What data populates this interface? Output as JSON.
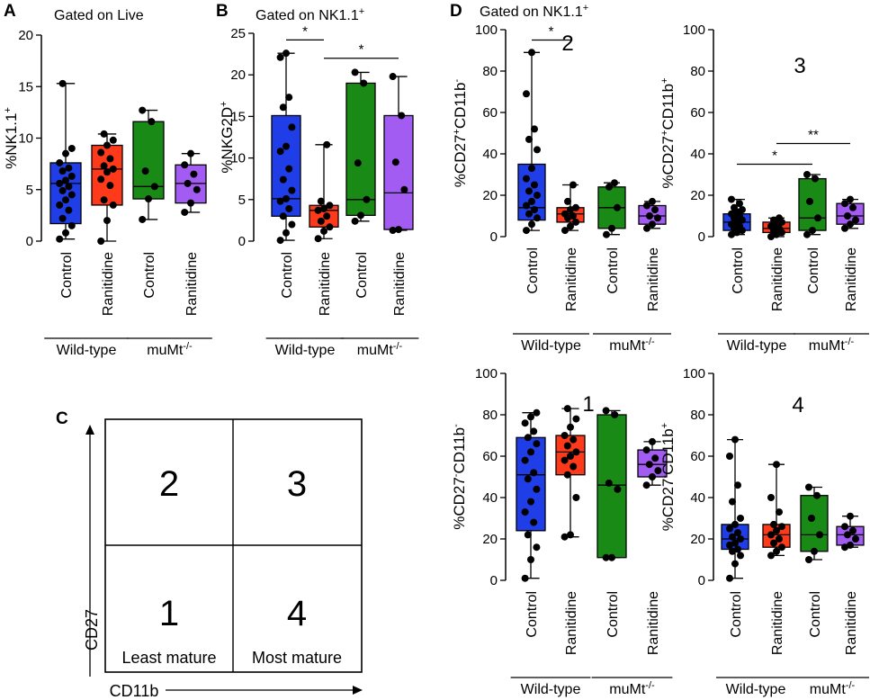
{
  "colors": {
    "control_wt": "#1f3ee8",
    "ranitidine_wt": "#ff3a1a",
    "control_mumt": "#1a8a16",
    "ranitidine_mumt": "#a35cf2",
    "dot": "#000000"
  },
  "categories": [
    "Control",
    "Ranitidine",
    "Control",
    "Ranitidine"
  ],
  "groups": [
    "Wild-type",
    "muMt-/-"
  ],
  "chart_data": [
    {
      "id": "A",
      "panel_letter": "A",
      "type": "box",
      "title": "Gated on Live",
      "ylabel": "%NK1.1+",
      "ylim": [
        0,
        20
      ],
      "yticks": [
        "0",
        "5",
        "10",
        "15",
        "20"
      ],
      "quadrant_number": "",
      "categories": [
        "Control",
        "Ranitidine",
        "Control",
        "Ranitidine"
      ],
      "groups": [
        "Wild-type",
        "muMt-/-"
      ],
      "boxes": [
        {
          "min": 0.2,
          "q1": 1.7,
          "median": 5.6,
          "q3": 7.6,
          "max": 15.3,
          "points": [
            0.2,
            0.8,
            1.5,
            2.2,
            3.0,
            3.5,
            4.0,
            4.5,
            4.9,
            5.3,
            5.6,
            5.9,
            6.3,
            6.8,
            7.1,
            7.6,
            8.5,
            9.0,
            15.3
          ]
        },
        {
          "min": 0.0,
          "q1": 3.5,
          "median": 7.0,
          "q3": 9.3,
          "max": 10.4,
          "points": [
            0.0,
            2.0,
            3.5,
            4.0,
            5.4,
            6.0,
            6.7,
            7.0,
            7.3,
            8.0,
            8.6,
            9.3,
            9.8,
            10.4
          ]
        },
        {
          "min": 2.1,
          "q1": 4.1,
          "median": 5.3,
          "q3": 11.6,
          "max": 12.7,
          "points": [
            2.1,
            4.1,
            5.3,
            6.8,
            11.6,
            12.7
          ]
        },
        {
          "min": 2.8,
          "q1": 3.7,
          "median": 5.6,
          "q3": 7.4,
          "max": 8.5,
          "points": [
            2.8,
            3.7,
            5.0,
            5.6,
            6.5,
            7.4,
            8.5
          ]
        }
      ],
      "significance": []
    },
    {
      "id": "B",
      "panel_letter": "B",
      "type": "box",
      "title": "Gated on NK1.1+",
      "ylabel": "%NKG2D+",
      "ylim": [
        0,
        25
      ],
      "yticks": [
        "0",
        "5",
        "10",
        "15",
        "20",
        "25"
      ],
      "quadrant_number": "",
      "categories": [
        "Control",
        "Ranitidine",
        "Control",
        "Ranitidine"
      ],
      "groups": [
        "Wild-type",
        "muMt-/-"
      ],
      "boxes": [
        {
          "min": 0.1,
          "q1": 3.0,
          "median": 5.1,
          "q3": 15.1,
          "max": 22.6,
          "points": [
            0.1,
            1.0,
            2.0,
            3.0,
            3.9,
            4.8,
            5.1,
            6.1,
            7.4,
            8.7,
            10.8,
            11.4,
            13.7,
            16.1,
            17.3,
            22.1,
            22.6
          ]
        },
        {
          "min": 0.3,
          "q1": 1.7,
          "median": 3.7,
          "q3": 4.3,
          "max": 11.6,
          "points": [
            0.3,
            1.2,
            1.7,
            2.4,
            3.0,
            3.7,
            3.9,
            4.3,
            4.8,
            11.6
          ]
        },
        {
          "min": 2.4,
          "q1": 3.1,
          "median": 5.0,
          "q3": 19.0,
          "max": 20.3,
          "points": [
            2.4,
            3.1,
            5.0,
            9.4,
            19.0,
            20.3
          ]
        },
        {
          "min": 1.3,
          "q1": 1.4,
          "median": 5.8,
          "q3": 15.1,
          "max": 19.8,
          "points": [
            1.3,
            1.4,
            6.2,
            9.5,
            15.1,
            19.8
          ]
        }
      ],
      "significance": [
        {
          "from": 0,
          "to": 1,
          "y": 24.2,
          "label": "*"
        },
        {
          "from": 1,
          "to": 3,
          "y": 22.0,
          "label": "*"
        }
      ]
    },
    {
      "id": "D2",
      "panel_letter": "D",
      "type": "box",
      "title": "Gated on NK1.1+",
      "ylabel": "%CD27+CD11b-",
      "ylim": [
        0,
        100
      ],
      "yticks": [
        "0",
        "20",
        "40",
        "60",
        "80",
        "100"
      ],
      "quadrant_number": "2",
      "categories": [
        "Control",
        "Ranitidine",
        "Control",
        "Ranitidine"
      ],
      "groups": [
        "Wild-type",
        "muMt-/-"
      ],
      "boxes": [
        {
          "min": 3,
          "q1": 8,
          "median": 14,
          "q3": 35,
          "max": 89,
          "points": [
            3,
            6,
            9,
            11,
            13,
            15,
            17,
            20,
            22,
            25,
            28,
            33,
            42,
            47,
            52,
            69,
            89
          ]
        },
        {
          "min": 3,
          "q1": 7,
          "median": 11,
          "q3": 14,
          "max": 25,
          "points": [
            3,
            5,
            7,
            9,
            10,
            11,
            13,
            14,
            17,
            25
          ]
        },
        {
          "min": 1,
          "q1": 4,
          "median": 14,
          "q3": 24,
          "max": 26,
          "points": [
            1,
            4,
            14,
            24,
            26
          ]
        },
        {
          "min": 4,
          "q1": 6,
          "median": 10,
          "q3": 15,
          "max": 17,
          "points": [
            4,
            6,
            9,
            10,
            13,
            15,
            17
          ]
        }
      ],
      "significance": [
        {
          "from": 0,
          "to": 1,
          "y": 95,
          "label": "*"
        }
      ]
    },
    {
      "id": "D3",
      "panel_letter": "",
      "type": "box",
      "title": "",
      "ylabel": "%CD27+CD11b+",
      "ylim": [
        0,
        100
      ],
      "yticks": [
        "0",
        "20",
        "40",
        "60",
        "80",
        "100"
      ],
      "quadrant_number": "3",
      "categories": [
        "Control",
        "Ranitidine",
        "Control",
        "Ranitidine"
      ],
      "groups": [
        "Wild-type",
        "muMt-/-"
      ],
      "boxes": [
        {
          "min": 1,
          "q1": 3,
          "median": 7,
          "q3": 11,
          "max": 18,
          "points": [
            1,
            2,
            3,
            4,
            5,
            6,
            7,
            8,
            9,
            10,
            11,
            12,
            13,
            14,
            16,
            18
          ]
        },
        {
          "min": 0,
          "q1": 2,
          "median": 4,
          "q3": 7,
          "max": 9,
          "points": [
            0,
            1,
            2,
            3,
            4,
            5,
            6,
            7,
            8,
            9
          ]
        },
        {
          "min": 1,
          "q1": 3,
          "median": 9,
          "q3": 28,
          "max": 30,
          "points": [
            1,
            3,
            9,
            17,
            28,
            30
          ]
        },
        {
          "min": 4,
          "q1": 6,
          "median": 10,
          "q3": 16,
          "max": 18,
          "points": [
            4,
            6,
            8,
            10,
            14,
            16,
            18
          ]
        }
      ],
      "significance": [
        {
          "from": 0,
          "to": 2,
          "y": 35,
          "label": "*"
        },
        {
          "from": 1,
          "to": 3,
          "y": 45,
          "label": "**"
        }
      ]
    },
    {
      "id": "D1",
      "panel_letter": "",
      "type": "box",
      "title": "",
      "ylabel": "%CD27-CD11b-",
      "ylim": [
        0,
        100
      ],
      "yticks": [
        "0",
        "20",
        "40",
        "60",
        "80",
        "100"
      ],
      "quadrant_number": "1",
      "categories": [
        "Control",
        "Ranitidine",
        "Control",
        "Ranitidine"
      ],
      "groups": [
        "Wild-type",
        "muMt-/-"
      ],
      "boxes": [
        {
          "min": 1,
          "q1": 24,
          "median": 51,
          "q3": 69,
          "max": 81,
          "points": [
            1,
            10,
            16,
            22,
            28,
            33,
            38,
            44,
            49,
            52,
            58,
            62,
            66,
            69,
            72,
            76,
            79,
            81
          ]
        },
        {
          "min": 21,
          "q1": 51,
          "median": 62,
          "q3": 70,
          "max": 83,
          "points": [
            21,
            22,
            40,
            51,
            55,
            58,
            60,
            62,
            65,
            68,
            70,
            74,
            78,
            83
          ]
        },
        {
          "min": 11,
          "q1": 11,
          "median": 46,
          "q3": 80,
          "max": 82,
          "points": [
            11,
            11,
            44,
            47,
            80,
            82
          ]
        },
        {
          "min": 46,
          "q1": 50,
          "median": 56,
          "q3": 63,
          "max": 67,
          "points": [
            46,
            50,
            53,
            56,
            59,
            63,
            67
          ]
        }
      ],
      "significance": []
    },
    {
      "id": "D4",
      "panel_letter": "",
      "type": "box",
      "title": "",
      "ylabel": "%CD27-CD11b+",
      "ylim": [
        0,
        100
      ],
      "yticks": [
        "0",
        "20",
        "40",
        "60",
        "80",
        "100"
      ],
      "quadrant_number": "4",
      "categories": [
        "Control",
        "Ranitidine",
        "Control",
        "Ranitidine"
      ],
      "groups": [
        "Wild-type",
        "muMt-/-"
      ],
      "boxes": [
        {
          "min": 1,
          "q1": 15,
          "median": 20,
          "q3": 27,
          "max": 68,
          "points": [
            1,
            8,
            12,
            14,
            15,
            17,
            18,
            20,
            21,
            23,
            25,
            27,
            30,
            38,
            46,
            60,
            68
          ]
        },
        {
          "min": 12,
          "q1": 16,
          "median": 22,
          "q3": 27,
          "max": 56,
          "points": [
            12,
            14,
            16,
            18,
            20,
            22,
            24,
            26,
            27,
            33,
            40,
            56
          ]
        },
        {
          "min": 10,
          "q1": 14,
          "median": 22,
          "q3": 41,
          "max": 45,
          "points": [
            10,
            14,
            22,
            30,
            41,
            45
          ]
        },
        {
          "min": 16,
          "q1": 17,
          "median": 22,
          "q3": 26,
          "max": 31,
          "points": [
            16,
            17,
            20,
            22,
            24,
            26,
            31
          ]
        }
      ],
      "significance": []
    }
  ],
  "quadrant_diagram": {
    "panel_letter": "C",
    "x_axis_label": "CD11b",
    "y_axis_label": "CD27",
    "cells": [
      {
        "number": "2",
        "label": ""
      },
      {
        "number": "3",
        "label": ""
      },
      {
        "number": "1",
        "label": "Least mature"
      },
      {
        "number": "4",
        "label": "Most mature"
      }
    ]
  }
}
